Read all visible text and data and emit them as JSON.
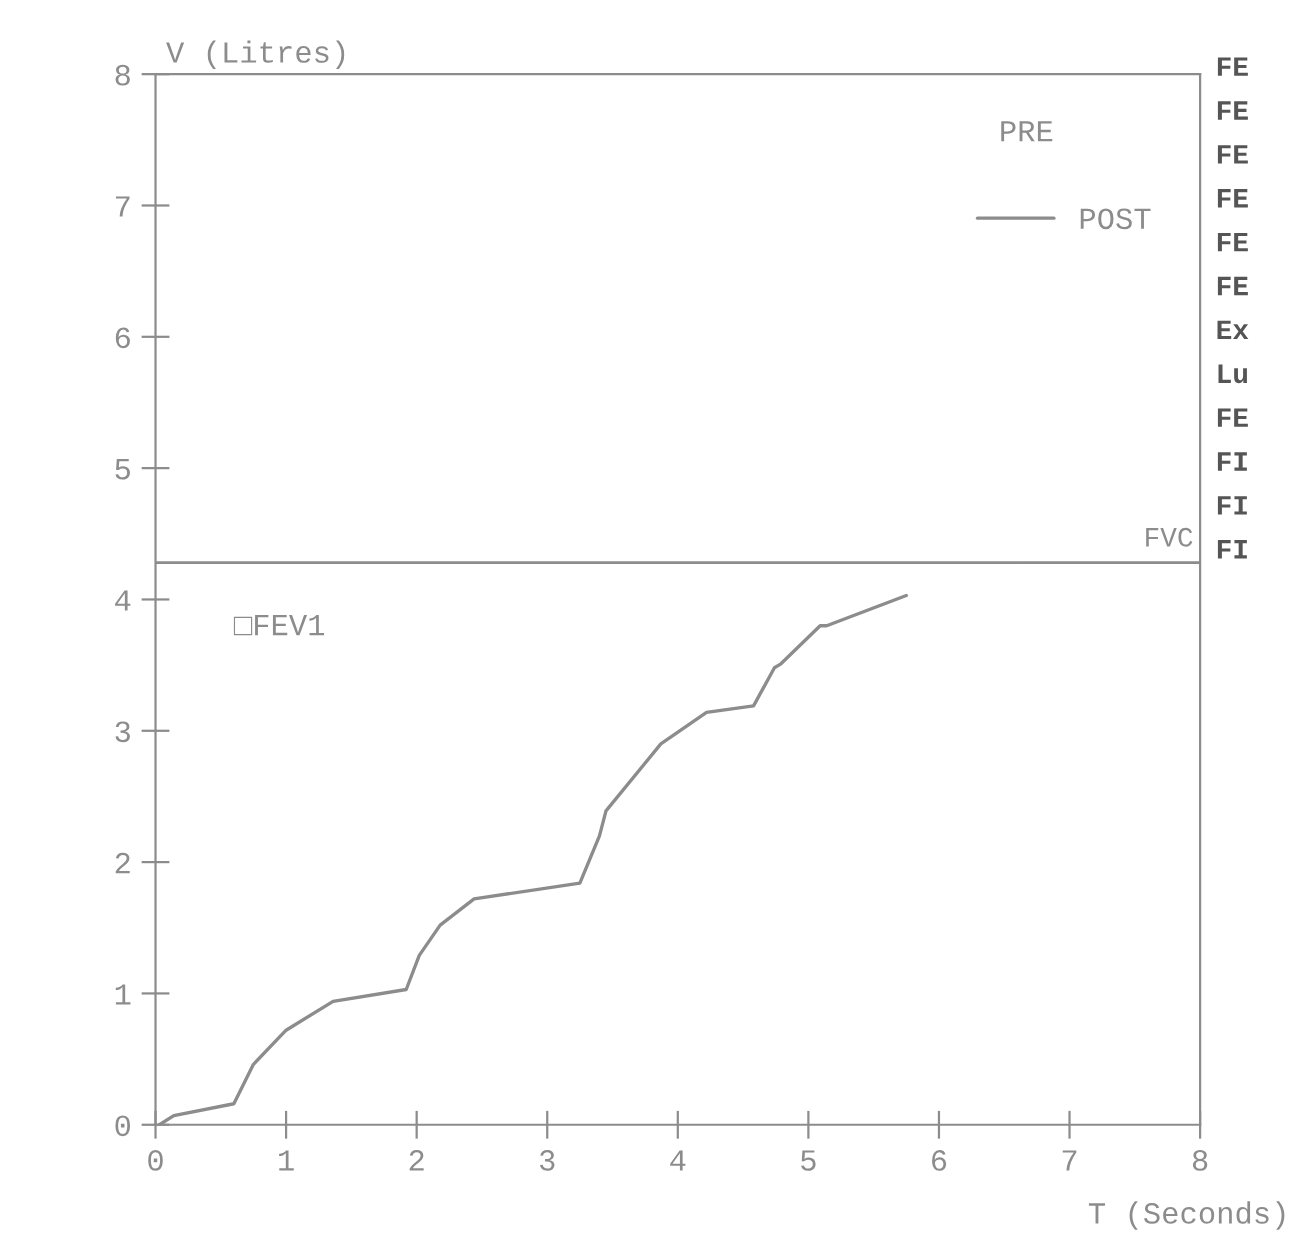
{
  "chart_data": {
    "type": "line",
    "xlabel": "T (Seconds)",
    "ylabel": "V (Litres)",
    "x": [
      0.03,
      0.14,
      0.6,
      0.75,
      1.0,
      1.36,
      1.92,
      2.02,
      2.18,
      2.44,
      3.25,
      3.4,
      3.45,
      3.87,
      4.22,
      4.58,
      4.74,
      4.79,
      5.09,
      5.14,
      5.75
    ],
    "series": [
      {
        "name": "POST",
        "color": "#8c8c8c",
        "values": [
          0,
          0.07,
          0.16,
          0.46,
          0.72,
          0.94,
          1.03,
          1.29,
          1.52,
          1.72,
          1.84,
          2.2,
          2.39,
          2.9,
          3.14,
          3.19,
          3.48,
          3.51,
          3.8,
          3.8,
          4.03
        ]
      }
    ],
    "xlim": [
      0,
      8
    ],
    "ylim": [
      0,
      8
    ],
    "xticks": [
      0,
      1,
      2,
      3,
      4,
      5,
      6,
      7,
      8
    ],
    "yticks": [
      0,
      1,
      2,
      3,
      4,
      5,
      6,
      7,
      8
    ],
    "ref_lines": [
      {
        "axis": "y",
        "value": 4.28,
        "label": "FVC",
        "color": "#8c8c8c"
      }
    ],
    "legend": "top right",
    "grid": false,
    "marker": "none",
    "line_style": "solid",
    "annotations": [
      "□FEV1",
      "PRE",
      "FE",
      "FE",
      "FE",
      "FE",
      "FE",
      "FE",
      "Ex",
      "Lu",
      "FE",
      "FI",
      "FI",
      "FI"
    ]
  }
}
